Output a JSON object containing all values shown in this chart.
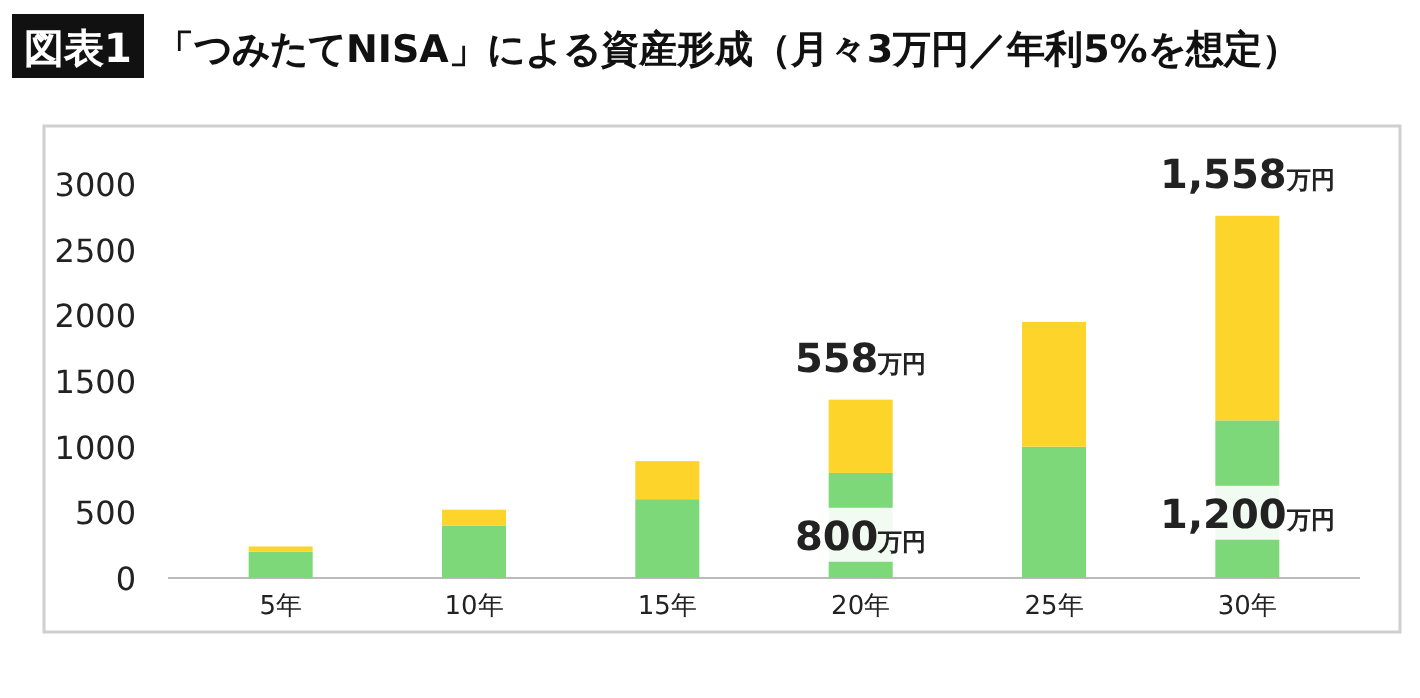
{
  "chart_data": {
    "type": "bar",
    "stacked": true,
    "title": "図表1",
    "subtitle": "「つみたてNISA」による資産形成（月々3万円／年利5%を想定）",
    "categories": [
      "5年",
      "10年",
      "15年",
      "20年",
      "25年",
      "30年"
    ],
    "series": [
      {
        "color": "#7dd87a",
        "values": [
          200,
          400,
          600,
          800,
          1000,
          1200
        ],
        "value_labels": [
          null,
          null,
          null,
          "800万円",
          null,
          "1,200万円"
        ]
      },
      {
        "color": "#fdd42a",
        "values": [
          40,
          120,
          290,
          558,
          950,
          1558
        ],
        "value_labels": [
          null,
          null,
          null,
          "558万円",
          null,
          "1,558万円"
        ]
      }
    ],
    "ylim": [
      0,
      3000
    ],
    "yticks": [
      0,
      500,
      1000,
      1500,
      2000,
      2500,
      3000
    ],
    "grid": false
  }
}
